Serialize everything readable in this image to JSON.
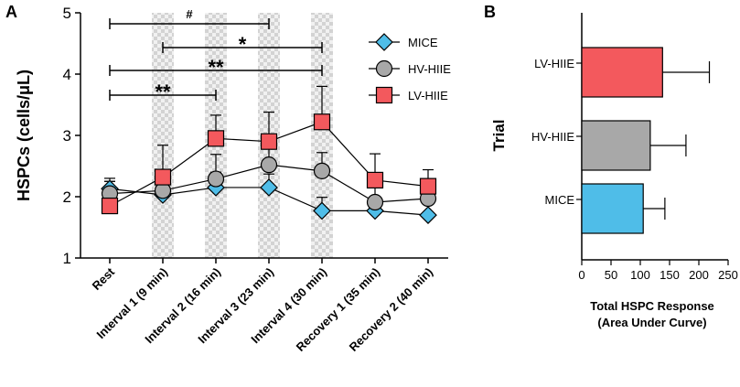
{
  "chart_data": [
    {
      "panel": "A",
      "type": "line",
      "ylabel": "HSPCs (cells/μL)",
      "ylim": [
        1,
        5
      ],
      "yticks": [
        1,
        2,
        3,
        4,
        5
      ],
      "categories": [
        "Rest",
        "Interval 1 (9 min)",
        "Interval 2 (16 min)",
        "Interval 3 (23 min)",
        "Interval 4 (30 min)",
        "Recovery 1 (35 min)",
        "Recovery 2 (40 min)"
      ],
      "shaded_categories": [
        1,
        2,
        3,
        4
      ],
      "series": [
        {
          "name": "MICE",
          "marker": "diamond",
          "color": "#4fbde8",
          "values": [
            2.13,
            2.03,
            2.15,
            2.15,
            1.77,
            1.77,
            1.7
          ],
          "errors": [
            0.17,
            0.18,
            0.25,
            0.22,
            0.22,
            0.22,
            0.26
          ]
        },
        {
          "name": "HV-HIIE",
          "marker": "circle",
          "color": "#a8a8a8",
          "values": [
            2.05,
            2.1,
            2.29,
            2.52,
            2.42,
            1.91,
            1.97
          ],
          "errors": [
            0.2,
            0.25,
            0.4,
            0.35,
            0.3,
            0.28,
            0.25
          ]
        },
        {
          "name": "LV-HIIE",
          "marker": "square",
          "color": "#f3595d",
          "values": [
            1.85,
            2.32,
            2.95,
            2.9,
            3.22,
            2.27,
            2.17
          ],
          "errors": [
            0.4,
            0.52,
            0.38,
            0.48,
            0.58,
            0.43,
            0.27
          ]
        }
      ],
      "significance": [
        {
          "label": "#",
          "from": 0,
          "to": 3
        },
        {
          "label": "*",
          "from": 1,
          "to": 4
        },
        {
          "label": "**",
          "from": 0,
          "to": 4
        },
        {
          "label": "**",
          "from": 0,
          "to": 2
        }
      ]
    },
    {
      "panel": "B",
      "type": "bar",
      "orientation": "horizontal",
      "ylabel": "Trial",
      "xlabel": "Total HSPC Response",
      "xlabel2": "(Area Under Curve)",
      "xlim": [
        0,
        250
      ],
      "xticks": [
        0,
        50,
        100,
        150,
        200,
        250
      ],
      "categories": [
        "LV-HIIE",
        "HV-HIIE",
        "MICE"
      ],
      "values": [
        138,
        117,
        105
      ],
      "errors": [
        80,
        61,
        37
      ],
      "colors": [
        "#f3595d",
        "#a8a8a8",
        "#4fbde8"
      ]
    }
  ],
  "panel_labels": {
    "a": "A",
    "b": "B"
  }
}
